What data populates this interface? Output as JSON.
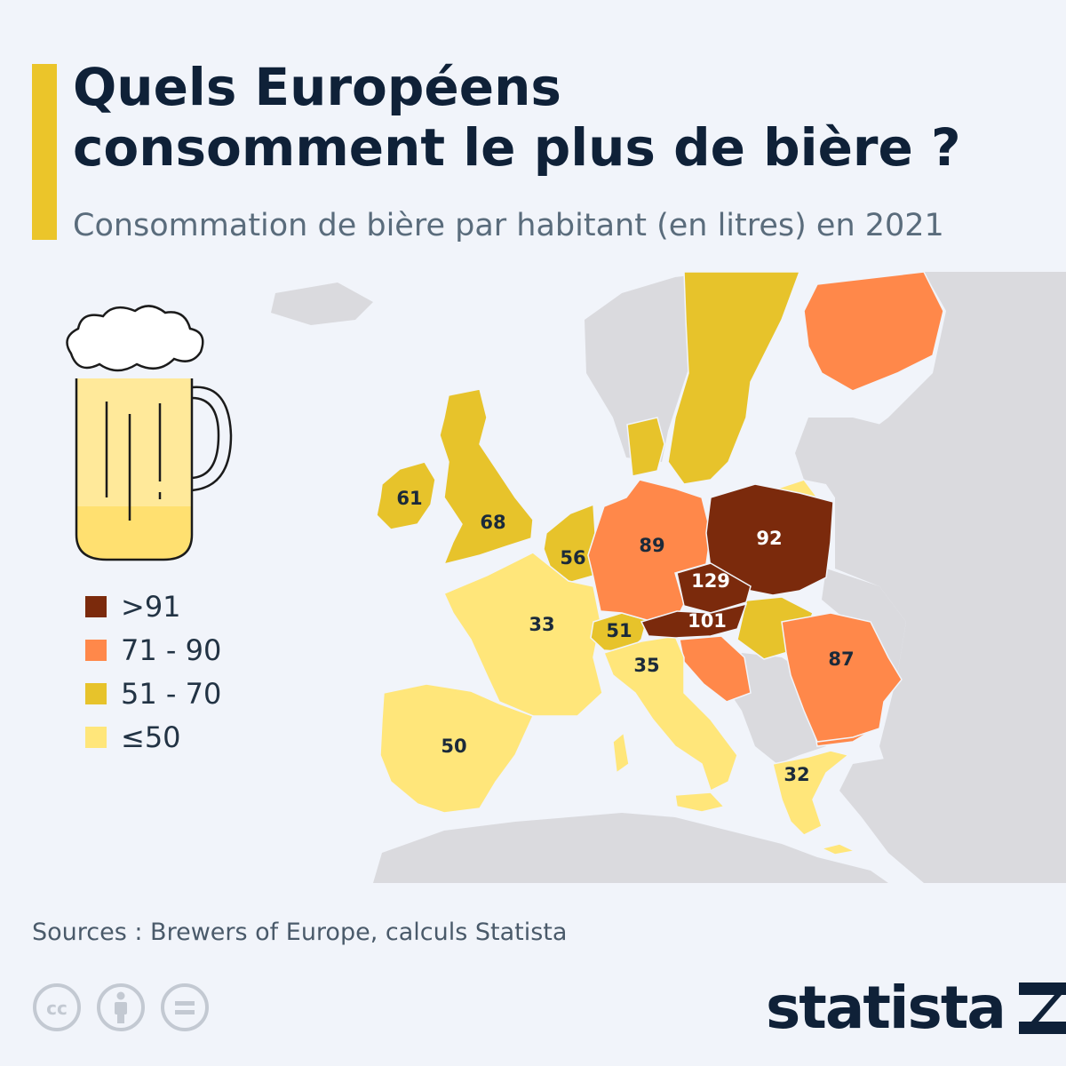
{
  "header": {
    "title_line1": "Quels Européens",
    "title_line2": "consomment le plus de bière ?",
    "subtitle": "Consommation de bière par habitant (en litres) en 2021"
  },
  "colors": {
    "accent": "#ebc52a",
    "navy": "#0f2138",
    "sea": "#f1f4fa",
    "other_land": "#dadade",
    "cat_gt91": "#7b2a0c",
    "cat_71_90": "#ff884a",
    "cat_51_70": "#e7c32b",
    "cat_le50": "#ffe67a"
  },
  "legend": {
    "items": [
      {
        "label": ">91",
        "color": "#7b2a0c"
      },
      {
        "label": "71 - 90",
        "color": "#ff884a"
      },
      {
        "label": "51 - 70",
        "color": "#e7c32b"
      },
      {
        "label": "≤50",
        "color": "#ffe67a"
      }
    ]
  },
  "chart_data": {
    "type": "choropleth",
    "title": "Quels Européens consomment le plus de bière ?",
    "subtitle": "Consommation de bière par habitant (en litres) en 2021",
    "unit": "litres par habitant",
    "year": 2021,
    "categories": [
      ">91",
      "71 - 90",
      "51 - 70",
      "≤50"
    ],
    "regions": [
      {
        "id": "ireland",
        "value": 61,
        "category": "51 - 70"
      },
      {
        "id": "united-kingdom",
        "value": 68,
        "category": "51 - 70"
      },
      {
        "id": "benelux",
        "value": 56,
        "category": "51 - 70"
      },
      {
        "id": "france",
        "value": 33,
        "category": "≤50"
      },
      {
        "id": "spain",
        "value": 50,
        "category": "≤50"
      },
      {
        "id": "switzerland",
        "value": 51,
        "category": "51 - 70"
      },
      {
        "id": "italy",
        "value": 35,
        "category": "≤50"
      },
      {
        "id": "germany",
        "value": 89,
        "category": "71 - 90"
      },
      {
        "id": "poland",
        "value": 92,
        "category": ">91"
      },
      {
        "id": "czechia",
        "value": 129,
        "category": ">91"
      },
      {
        "id": "austria",
        "value": 101,
        "category": ">91"
      },
      {
        "id": "romania",
        "value": 87,
        "category": "71 - 90"
      },
      {
        "id": "greece",
        "value": 32,
        "category": "≤50"
      }
    ]
  },
  "footer": {
    "sources": "Sources : Brewers of Europe, calculs Statista",
    "brand": "statista"
  },
  "icons": {
    "license": [
      "cc-icon",
      "attribution-icon",
      "no-derivatives-icon"
    ],
    "illustration": "beer-mug-icon",
    "brand_logo": "statista-logo-icon"
  }
}
